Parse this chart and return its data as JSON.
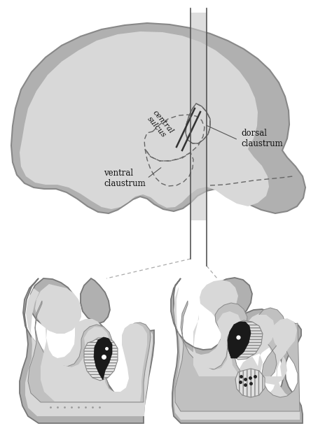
{
  "bg_color": "#ffffff",
  "outer_c": "#b0b0b0",
  "inner_c": "#d8d8d8",
  "mid_c": "#c0c0c0",
  "dark_c": "#111111",
  "line_c": "#555555",
  "hatch_fg": "#888888",
  "label_cs": "central\nsulcus",
  "label_dorsal": "dorsal\nclaustrum",
  "label_ventral": "ventral\nclaustrum",
  "figw": 4.74,
  "figh": 6.09,
  "dpi": 100
}
